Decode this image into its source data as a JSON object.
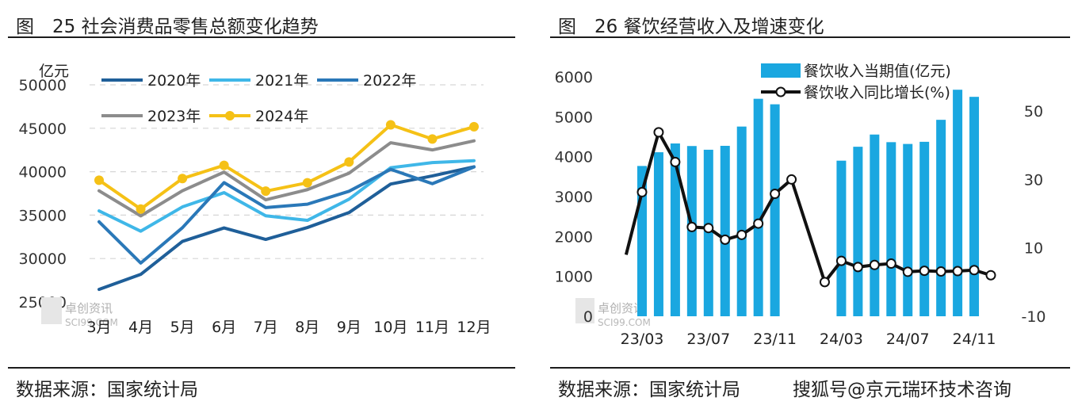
{
  "left_panel": {
    "title": "图　25 社会消费品零售总额变化趋势",
    "source": "数据来源：国家统计局",
    "logo": {
      "name": "卓创资讯",
      "sub": "SCI99.COM"
    }
  },
  "right_panel": {
    "title": "图　26 餐饮经营收入及增速变化",
    "source": "数据来源：国家统计局",
    "watermark": "搜狐号@京元瑞环技术咨询",
    "logo": {
      "name": "卓创资讯",
      "sub": "SCI99.COM"
    }
  },
  "colors": {
    "s2020": "#1f5f99",
    "s2021": "#3fb7e8",
    "s2022": "#2a78b8",
    "s2023": "#8c8c8c",
    "s2024": "#f5c116",
    "bar": "#1aa7e0",
    "yoy": "#111111",
    "grid": "#d6d6d6"
  },
  "chart_data": [
    {
      "type": "line",
      "yunit": "亿元",
      "ylim": [
        25000,
        50000
      ],
      "yticks": [
        "25000",
        "30000",
        "35000",
        "40000",
        "45000",
        "50000"
      ],
      "categories": [
        "3月",
        "4月",
        "5月",
        "6月",
        "7月",
        "8月",
        "9月",
        "10月",
        "11月",
        "12月"
      ],
      "grid": true,
      "legend_position": "top",
      "series": [
        {
          "name": "2020年",
          "color_key": "s2020",
          "values": [
            26450,
            28178,
            31973,
            33526,
            32203,
            33571,
            35295,
            38576,
            39514,
            40566
          ]
        },
        {
          "name": "2021年",
          "color_key": "s2021",
          "values": [
            35484,
            33153,
            35945,
            37586,
            34925,
            34395,
            36833,
            40454,
            41043,
            41269
          ]
        },
        {
          "name": "2022年",
          "color_key": "s2022",
          "values": [
            34233,
            29483,
            33547,
            38742,
            35870,
            36258,
            37745,
            40271,
            38615,
            40542
          ]
        },
        {
          "name": "2023年",
          "color_key": "s2023",
          "values": [
            37800,
            34910,
            37803,
            39951,
            36761,
            37933,
            39826,
            43333,
            42505,
            43550
          ]
        },
        {
          "name": "2024年",
          "color_key": "s2024",
          "values": [
            39020,
            35699,
            39211,
            40732,
            37757,
            38726,
            41112,
            45396,
            43763,
            45172
          ],
          "markers": true
        }
      ]
    },
    {
      "type": "bar",
      "categories": [
        "23/03",
        "23/04",
        "23/05",
        "23/06",
        "23/07",
        "23/08",
        "23/09",
        "23/10",
        "23/11",
        "23/12",
        "24/01",
        "24/02",
        "24/03",
        "24/04",
        "24/05",
        "24/06",
        "24/07",
        "24/08",
        "24/09",
        "24/10",
        "24/11",
        "24/12"
      ],
      "xtick_labels": [
        "23/03",
        "23/07",
        "23/11",
        "24/03",
        "24/07",
        "24/11"
      ],
      "xtick_indices": [
        0,
        4,
        8,
        12,
        16,
        20
      ],
      "legend_position": "top-right",
      "y_left": {
        "ylim": [
          0,
          6000
        ],
        "yticks": [
          "0",
          "1000",
          "2000",
          "3000",
          "4000",
          "5000",
          "6000"
        ]
      },
      "y_right": {
        "ylim": [
          -10,
          60
        ],
        "yticks": [
          "-10",
          "10",
          "30",
          "50"
        ]
      },
      "series": [
        {
          "name": "餐饮收入当期值(亿元)",
          "type": "bar",
          "axis": "left",
          "color_key": "bar",
          "values": [
            3767,
            4111,
            4331,
            4267,
            4174,
            4272,
            4755,
            5451,
            5313,
            null,
            null,
            null,
            3900,
            4249,
            4555,
            4364,
            4319,
            4373,
            4924,
            5678,
            5500,
            null
          ]
        },
        {
          "name": "餐饮收入同比增长(%)",
          "type": "line",
          "axis": "right",
          "color_key": "yoy",
          "markers": true,
          "values": [
            26.3,
            43.8,
            35.1,
            16.1,
            15.8,
            12.4,
            13.8,
            17.1,
            25.8,
            30.0,
            null,
            0.0,
            6.2,
            4.4,
            5.0,
            5.4,
            3.0,
            3.3,
            3.1,
            3.2,
            3.5,
            2.0
          ],
          "line_starts_before_first": true
        }
      ]
    }
  ]
}
